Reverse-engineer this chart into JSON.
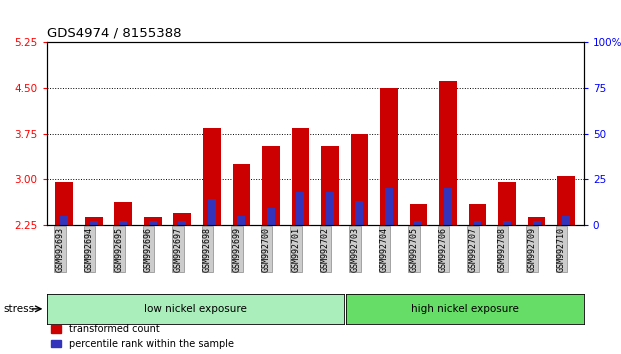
{
  "title": "GDS4974 / 8155388",
  "samples": [
    "GSM992693",
    "GSM992694",
    "GSM992695",
    "GSM992696",
    "GSM992697",
    "GSM992698",
    "GSM992699",
    "GSM992700",
    "GSM992701",
    "GSM992702",
    "GSM992703",
    "GSM992704",
    "GSM992705",
    "GSM992706",
    "GSM992707",
    "GSM992708",
    "GSM992709",
    "GSM992710"
  ],
  "red_values": [
    2.95,
    2.38,
    2.62,
    2.38,
    2.45,
    3.85,
    3.25,
    3.55,
    3.85,
    3.55,
    3.75,
    4.5,
    2.6,
    4.62,
    2.6,
    2.95,
    2.38,
    3.05
  ],
  "blue_pct": [
    5,
    2,
    2,
    2,
    2,
    14,
    5,
    9,
    18,
    18,
    13,
    20,
    2,
    20,
    2,
    2,
    2,
    5
  ],
  "ymin": 2.25,
  "ymax": 5.25,
  "yticks_red": [
    2.25,
    3.0,
    3.75,
    4.5,
    5.25
  ],
  "yticks_blue": [
    0,
    25,
    50,
    75,
    100
  ],
  "low_nickel_count": 10,
  "high_nickel_count": 8,
  "bar_color": "#cc0000",
  "blue_color": "#3333bb",
  "low_nickel_color": "#aaeebb",
  "high_nickel_color": "#66dd66",
  "stress_label": "stress",
  "low_label": "low nickel exposure",
  "high_label": "high nickel exposure",
  "legend_red": "transformed count",
  "legend_blue": "percentile rank within the sample",
  "bar_width": 0.6,
  "xlabel_fontsize": 6.0,
  "title_fontsize": 9.5
}
